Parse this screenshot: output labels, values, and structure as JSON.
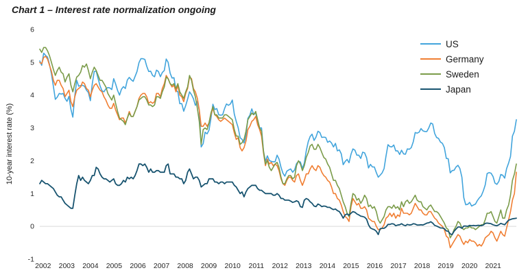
{
  "chart_data": {
    "type": "line",
    "title": "Chart 1 – Interest rate normalization ongoing",
    "ylabel": "10-year interest rate (%)",
    "xlabel": "",
    "ylim": [
      -1,
      6
    ],
    "ytick_values": [
      6,
      5,
      4,
      3,
      2,
      1,
      0,
      -1
    ],
    "ytick_labels": [
      "6",
      "5",
      "4",
      "3",
      "2",
      "1",
      "0",
      "-1"
    ],
    "xtick_labels": [
      "2002",
      "2003",
      "2004",
      "2005",
      "2006",
      "2007",
      "2008",
      "2009",
      "2010",
      "2011",
      "2012",
      "2013",
      "2014",
      "2015",
      "2016",
      "2017",
      "2018",
      "2019",
      "2020",
      "2021"
    ],
    "x_start": "2002-01",
    "x_end": "2022-06",
    "frequency": "monthly",
    "grid": "single horizontal gridline at zero",
    "gridline_color": "#d9d9d9",
    "text_color": "#262626",
    "legend_position": "top-right",
    "series": [
      {
        "name": "US",
        "color": "#41a4dc",
        "values": [
          5.04,
          4.91,
          5.28,
          5.21,
          5.16,
          4.93,
          4.65,
          4.26,
          3.87,
          3.94,
          4.05,
          4.03,
          4.05,
          3.9,
          3.81,
          3.96,
          3.57,
          3.33,
          3.98,
          4.45,
          4.27,
          4.29,
          4.3,
          4.27,
          4.15,
          4.08,
          3.83,
          4.35,
          4.72,
          4.73,
          4.5,
          4.28,
          4.13,
          4.1,
          4.19,
          4.23,
          4.22,
          4.17,
          4.5,
          4.34,
          4.14,
          4.0,
          4.18,
          4.26,
          4.2,
          4.46,
          4.54,
          4.47,
          4.42,
          4.57,
          4.72,
          4.99,
          5.11,
          5.11,
          5.09,
          4.88,
          4.72,
          4.73,
          4.6,
          4.56,
          4.76,
          4.72,
          4.56,
          4.69,
          4.75,
          5.1,
          5.0,
          4.67,
          4.52,
          4.53,
          4.15,
          4.1,
          3.74,
          3.74,
          3.51,
          3.68,
          3.88,
          4.1,
          4.01,
          3.89,
          3.69,
          3.81,
          3.53,
          2.42,
          2.52,
          2.87,
          2.82,
          2.93,
          3.29,
          3.72,
          3.56,
          3.59,
          3.4,
          3.39,
          3.4,
          3.59,
          3.73,
          3.69,
          3.73,
          3.85,
          3.42,
          3.2,
          3.01,
          2.7,
          2.65,
          2.54,
          2.76,
          3.29,
          3.39,
          3.58,
          3.41,
          3.46,
          3.17,
          3.0,
          3.0,
          2.3,
          1.98,
          2.15,
          2.01,
          1.98,
          1.97,
          1.97,
          2.17,
          2.05,
          1.8,
          1.62,
          1.53,
          1.68,
          1.72,
          1.75,
          1.65,
          1.72,
          1.91,
          1.98,
          1.96,
          1.76,
          1.93,
          2.3,
          2.58,
          2.74,
          2.81,
          2.62,
          2.72,
          2.9,
          2.86,
          2.71,
          2.72,
          2.71,
          2.56,
          2.6,
          2.54,
          2.42,
          2.53,
          2.3,
          2.33,
          2.21,
          1.88,
          1.98,
          2.04,
          1.94,
          2.2,
          2.36,
          2.32,
          2.17,
          2.17,
          2.07,
          2.26,
          2.24,
          2.09,
          1.78,
          1.89,
          1.81,
          1.81,
          1.64,
          1.5,
          1.56,
          1.63,
          1.76,
          2.14,
          2.49,
          2.43,
          2.42,
          2.48,
          2.3,
          2.3,
          2.19,
          2.32,
          2.21,
          2.2,
          2.36,
          2.35,
          2.4,
          2.58,
          2.86,
          2.84,
          2.87,
          2.98,
          2.91,
          2.89,
          2.89,
          3.0,
          3.15,
          3.12,
          2.83,
          2.71,
          2.68,
          2.57,
          2.53,
          2.4,
          2.07,
          2.06,
          1.63,
          1.7,
          1.71,
          1.81,
          1.86,
          1.76,
          1.5,
          0.87,
          0.66,
          0.67,
          0.73,
          0.62,
          0.65,
          0.68,
          0.79,
          0.87,
          0.93,
          1.08,
          1.26,
          1.61,
          1.64,
          1.62,
          1.52,
          1.32,
          1.28,
          1.37,
          1.58,
          1.56,
          1.47,
          1.76,
          1.93,
          2.13,
          2.75,
          2.9,
          3.25
        ]
      },
      {
        "name": "Germany",
        "color": "#f07e32",
        "values": [
          4.99,
          4.96,
          5.15,
          5.18,
          5.1,
          4.91,
          4.73,
          4.45,
          4.3,
          4.45,
          4.45,
          4.3,
          4.2,
          3.95,
          4.05,
          4.15,
          3.8,
          3.65,
          3.95,
          4.15,
          4.2,
          4.25,
          4.4,
          4.35,
          4.2,
          4.15,
          3.95,
          4.15,
          4.3,
          4.35,
          4.25,
          4.15,
          4.1,
          3.95,
          3.85,
          3.7,
          3.6,
          3.6,
          3.75,
          3.55,
          3.4,
          3.25,
          3.3,
          3.3,
          3.15,
          3.3,
          3.5,
          3.35,
          3.35,
          3.5,
          3.65,
          3.9,
          4.0,
          4.05,
          4.05,
          3.95,
          3.75,
          3.8,
          3.75,
          3.8,
          4.05,
          4.05,
          3.95,
          4.2,
          4.35,
          4.6,
          4.5,
          4.35,
          4.25,
          4.3,
          4.1,
          4.3,
          4.0,
          3.95,
          3.8,
          4.05,
          4.2,
          4.55,
          4.5,
          4.2,
          4.1,
          3.9,
          3.55,
          3.05,
          3.05,
          3.15,
          3.05,
          3.15,
          3.4,
          3.6,
          3.4,
          3.35,
          3.25,
          3.2,
          3.25,
          3.3,
          3.25,
          3.2,
          3.15,
          3.1,
          2.85,
          2.65,
          2.7,
          2.4,
          2.3,
          2.4,
          2.6,
          2.95,
          3.05,
          3.2,
          3.25,
          3.35,
          3.1,
          2.95,
          2.75,
          2.25,
          1.85,
          2.05,
          1.9,
          1.95,
          1.85,
          1.9,
          1.85,
          1.7,
          1.45,
          1.3,
          1.25,
          1.4,
          1.5,
          1.5,
          1.4,
          1.35,
          1.55,
          1.6,
          1.4,
          1.25,
          1.4,
          1.6,
          1.6,
          1.75,
          1.85,
          1.75,
          1.7,
          1.85,
          1.8,
          1.65,
          1.55,
          1.5,
          1.4,
          1.35,
          1.2,
          1.0,
          1.0,
          0.85,
          0.8,
          0.65,
          0.45,
          0.3,
          0.25,
          0.15,
          0.6,
          0.85,
          0.75,
          0.65,
          0.7,
          0.55,
          0.55,
          0.6,
          0.5,
          0.25,
          0.2,
          0.15,
          0.15,
          0.0,
          -0.1,
          -0.1,
          -0.05,
          0.05,
          0.25,
          0.3,
          0.4,
          0.3,
          0.4,
          0.25,
          0.35,
          0.3,
          0.55,
          0.4,
          0.4,
          0.4,
          0.35,
          0.4,
          0.55,
          0.7,
          0.6,
          0.5,
          0.5,
          0.4,
          0.35,
          0.35,
          0.45,
          0.45,
          0.35,
          0.25,
          0.2,
          0.1,
          0.05,
          0.0,
          -0.1,
          -0.3,
          -0.35,
          -0.65,
          -0.55,
          -0.45,
          -0.35,
          -0.25,
          -0.3,
          -0.45,
          -0.55,
          -0.45,
          -0.5,
          -0.4,
          -0.45,
          -0.45,
          -0.5,
          -0.6,
          -0.55,
          -0.6,
          -0.5,
          -0.35,
          -0.3,
          -0.25,
          -0.15,
          -0.2,
          -0.35,
          -0.45,
          -0.3,
          -0.15,
          -0.25,
          -0.3,
          -0.05,
          0.2,
          0.45,
          0.8,
          1.0,
          1.65
        ]
      },
      {
        "name": "Sweden",
        "color": "#7a9b49",
        "values": [
          5.4,
          5.3,
          5.45,
          5.45,
          5.35,
          5.2,
          5.0,
          4.78,
          4.6,
          4.75,
          4.85,
          4.7,
          4.65,
          4.4,
          4.55,
          4.65,
          4.3,
          4.1,
          4.35,
          4.55,
          4.6,
          4.7,
          4.9,
          4.85,
          4.95,
          4.75,
          4.5,
          4.7,
          4.85,
          4.75,
          4.6,
          4.45,
          4.45,
          4.35,
          4.25,
          4.05,
          3.95,
          3.85,
          4.0,
          3.75,
          3.5,
          3.3,
          3.25,
          3.2,
          3.1,
          3.3,
          3.45,
          3.35,
          3.35,
          3.5,
          3.65,
          3.85,
          3.9,
          3.95,
          3.95,
          3.85,
          3.7,
          3.7,
          3.65,
          3.7,
          3.95,
          3.95,
          3.9,
          4.1,
          4.25,
          4.55,
          4.5,
          4.35,
          4.3,
          4.35,
          4.2,
          4.35,
          4.1,
          4.0,
          3.9,
          4.1,
          4.25,
          4.6,
          4.45,
          4.15,
          3.95,
          3.6,
          3.2,
          2.5,
          2.95,
          3.0,
          2.95,
          3.15,
          3.45,
          3.65,
          3.4,
          3.4,
          3.3,
          3.3,
          3.3,
          3.4,
          3.4,
          3.35,
          3.3,
          3.25,
          2.95,
          2.75,
          2.75,
          2.5,
          2.55,
          2.65,
          2.9,
          3.25,
          3.35,
          3.45,
          3.4,
          3.5,
          3.25,
          3.0,
          2.9,
          2.3,
          1.9,
          2.0,
          1.8,
          1.7,
          1.8,
          1.9,
          1.95,
          1.8,
          1.5,
          1.3,
          1.3,
          1.45,
          1.55,
          1.55,
          1.45,
          1.5,
          1.85,
          2.0,
          1.9,
          1.7,
          1.85,
          2.1,
          2.25,
          2.45,
          2.5,
          2.35,
          2.35,
          2.5,
          2.4,
          2.25,
          2.1,
          2.05,
          1.9,
          1.8,
          1.6,
          1.4,
          1.4,
          1.25,
          1.15,
          0.95,
          0.75,
          0.6,
          0.4,
          0.3,
          0.7,
          1.0,
          0.95,
          0.8,
          0.85,
          0.7,
          0.8,
          0.95,
          0.85,
          0.6,
          0.65,
          0.55,
          0.6,
          0.45,
          0.2,
          0.1,
          0.2,
          0.3,
          0.5,
          0.6,
          0.6,
          0.55,
          0.65,
          0.55,
          0.6,
          0.5,
          0.75,
          0.6,
          0.75,
          0.8,
          0.7,
          0.75,
          0.85,
          0.95,
          0.8,
          0.75,
          0.75,
          0.6,
          0.55,
          0.5,
          0.6,
          0.65,
          0.55,
          0.45,
          0.45,
          0.4,
          0.3,
          0.2,
          0.1,
          -0.05,
          -0.1,
          -0.35,
          -0.25,
          -0.1,
          0.0,
          0.15,
          0.1,
          -0.05,
          -0.1,
          -0.05,
          -0.05,
          0.0,
          -0.05,
          -0.05,
          -0.1,
          -0.05,
          0.0,
          0.05,
          0.05,
          0.2,
          0.4,
          0.4,
          0.45,
          0.3,
          0.15,
          0.1,
          0.3,
          0.5,
          0.25,
          0.25,
          0.5,
          0.65,
          0.95,
          1.4,
          1.6,
          1.9
        ]
      },
      {
        "name": "Japan",
        "color": "#17536f",
        "values": [
          1.3,
          1.4,
          1.35,
          1.3,
          1.3,
          1.25,
          1.2,
          1.15,
          1.05,
          0.95,
          0.9,
          0.9,
          0.8,
          0.7,
          0.65,
          0.6,
          0.55,
          0.55,
          0.95,
          1.3,
          1.55,
          1.4,
          1.5,
          1.4,
          1.35,
          1.3,
          1.4,
          1.55,
          1.55,
          1.8,
          1.75,
          1.6,
          1.5,
          1.45,
          1.45,
          1.4,
          1.35,
          1.4,
          1.45,
          1.3,
          1.25,
          1.25,
          1.3,
          1.4,
          1.35,
          1.5,
          1.45,
          1.5,
          1.45,
          1.55,
          1.7,
          1.9,
          1.9,
          1.85,
          1.9,
          1.8,
          1.65,
          1.75,
          1.65,
          1.65,
          1.7,
          1.7,
          1.65,
          1.65,
          1.65,
          1.85,
          1.9,
          1.6,
          1.6,
          1.6,
          1.5,
          1.5,
          1.45,
          1.45,
          1.3,
          1.4,
          1.65,
          1.75,
          1.6,
          1.45,
          1.5,
          1.5,
          1.4,
          1.2,
          1.25,
          1.3,
          1.3,
          1.45,
          1.45,
          1.45,
          1.35,
          1.35,
          1.3,
          1.35,
          1.35,
          1.3,
          1.35,
          1.35,
          1.35,
          1.35,
          1.25,
          1.2,
          1.1,
          1.0,
          1.05,
          0.9,
          1.05,
          1.15,
          1.2,
          1.25,
          1.25,
          1.25,
          1.15,
          1.1,
          1.1,
          1.05,
          1.0,
          1.0,
          1.0,
          1.0,
          0.95,
          0.95,
          1.0,
          0.95,
          0.85,
          0.85,
          0.8,
          0.8,
          0.8,
          0.77,
          0.73,
          0.75,
          0.78,
          0.75,
          0.6,
          0.58,
          0.8,
          0.85,
          0.82,
          0.75,
          0.7,
          0.62,
          0.6,
          0.68,
          0.65,
          0.6,
          0.62,
          0.61,
          0.58,
          0.58,
          0.54,
          0.51,
          0.53,
          0.48,
          0.45,
          0.36,
          0.25,
          0.35,
          0.38,
          0.34,
          0.4,
          0.45,
          0.43,
          0.38,
          0.35,
          0.31,
          0.3,
          0.28,
          0.22,
          0.05,
          -0.05,
          -0.08,
          -0.1,
          -0.15,
          -0.25,
          -0.07,
          -0.06,
          -0.06,
          -0.02,
          0.06,
          0.06,
          0.08,
          0.07,
          0.02,
          0.04,
          0.05,
          0.08,
          0.04,
          0.02,
          0.06,
          0.04,
          0.05,
          0.08,
          0.07,
          0.04,
          0.04,
          0.05,
          0.04,
          0.07,
          0.1,
          0.11,
          0.14,
          0.1,
          0.03,
          0.01,
          -0.02,
          -0.05,
          -0.05,
          -0.07,
          -0.14,
          -0.15,
          -0.23,
          -0.25,
          -0.15,
          -0.08,
          -0.02,
          -0.02,
          -0.06,
          0.01,
          0.01,
          0.0,
          0.03,
          0.02,
          0.03,
          0.02,
          0.03,
          0.03,
          0.02,
          0.04,
          0.09,
          0.1,
          0.09,
          0.08,
          0.05,
          0.03,
          0.02,
          0.05,
          0.09,
          0.07,
          0.05,
          0.12,
          0.19,
          0.21,
          0.23,
          0.24,
          0.25
        ]
      }
    ]
  }
}
